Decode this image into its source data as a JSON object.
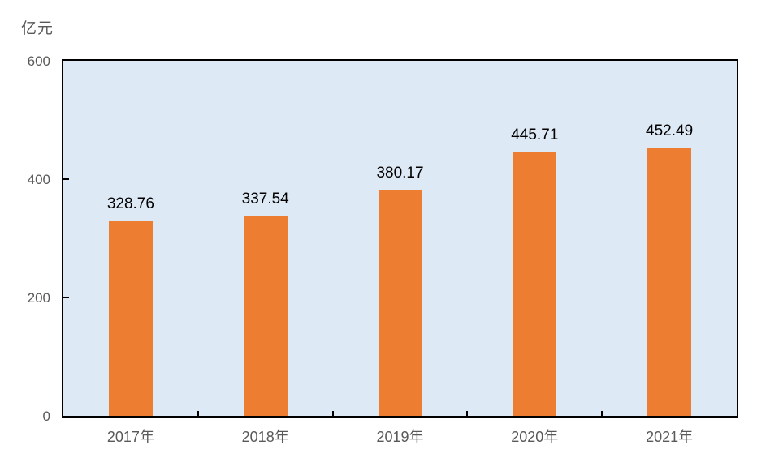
{
  "chart_data": {
    "type": "bar",
    "title": "",
    "xlabel": "",
    "ylabel": "亿元",
    "categories": [
      "2017年",
      "2018年",
      "2019年",
      "2020年",
      "2021年"
    ],
    "values": [
      328.76,
      337.54,
      380.17,
      445.71,
      452.49
    ],
    "value_labels": [
      "328.76",
      "337.54",
      "380.17",
      "445.71",
      "452.49"
    ],
    "yticks": [
      0,
      200,
      400,
      600
    ],
    "ytick_labels": [
      "0",
      "200",
      "400",
      "600"
    ],
    "ylim": [
      0,
      600
    ],
    "grid": false,
    "legend": null,
    "bar_gap_hint": "single series, wide gaps, bars sit on x-axis",
    "colors": {
      "bar": "#ED7D31",
      "plot_background": "#DDE9F5",
      "plot_border": "#000000",
      "axis_text": "#595959",
      "value_label_text": "#000000",
      "page_background": "#FFFFFF"
    }
  }
}
